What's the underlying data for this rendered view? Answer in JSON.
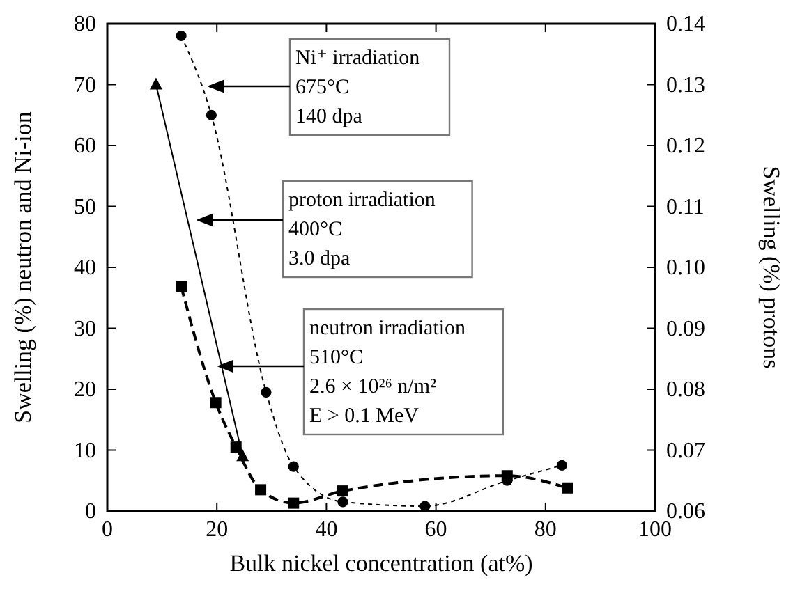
{
  "chart_data": {
    "type": "line",
    "xlabel": "Bulk nickel concentration (at%)",
    "ylabel": "Swelling (%) neutron and Ni-ion",
    "y2label": "Swelling (%) protons",
    "xlim": [
      0,
      100
    ],
    "xticks": [
      0,
      20,
      40,
      60,
      80,
      100
    ],
    "ylim": [
      0,
      80
    ],
    "yticks": [
      0,
      10,
      20,
      30,
      40,
      50,
      60,
      70,
      80
    ],
    "y2lim": [
      0.06,
      0.14
    ],
    "y2ticks": [
      {
        "value": 0.06,
        "label": "0.06"
      },
      {
        "value": 0.07,
        "label": "0.07"
      },
      {
        "value": 0.08,
        "label": "0.08"
      },
      {
        "value": 0.09,
        "label": "0.09"
      },
      {
        "value": 0.1,
        "label": "0.10"
      },
      {
        "value": 0.11,
        "label": "0.11"
      },
      {
        "value": 0.12,
        "label": "0.12"
      },
      {
        "value": 0.13,
        "label": "0.13"
      },
      {
        "value": 0.14,
        "label": "0.14"
      }
    ],
    "grid": false,
    "series": [
      {
        "type": "line",
        "color": "#000000",
        "marker": "circle",
        "line_style": "dotted",
        "x": [
          13.5,
          19,
          29,
          34,
          43,
          58,
          73,
          83
        ],
        "values": [
          78,
          65,
          19.5,
          7.3,
          1.5,
          0.8,
          5,
          7.5
        ]
      },
      {
        "type": "line",
        "color": "#000000",
        "marker": "square",
        "line_style": "dashed",
        "x": [
          13.5,
          19.8,
          23.5,
          28,
          34,
          43,
          73,
          84
        ],
        "values": [
          36.8,
          17.8,
          10.5,
          3.5,
          1.3,
          3.3,
          5.8,
          3.8
        ]
      },
      {
        "type": "line",
        "color": "#000000",
        "marker": "triangle",
        "line_style": "solid",
        "axis": "y2",
        "x": [
          8.9,
          24.7
        ],
        "values": [
          0.13,
          0.069
        ]
      }
    ],
    "annotations": [
      "Ni⁺ irradiation\n675°C\n140 dpa",
      "proton irradiation\n400°C\n3.0 dpa",
      "neutron irradiation\n510°C\n2.6 × 10²⁶ n/m²\nE > 0.1 MeV"
    ]
  }
}
